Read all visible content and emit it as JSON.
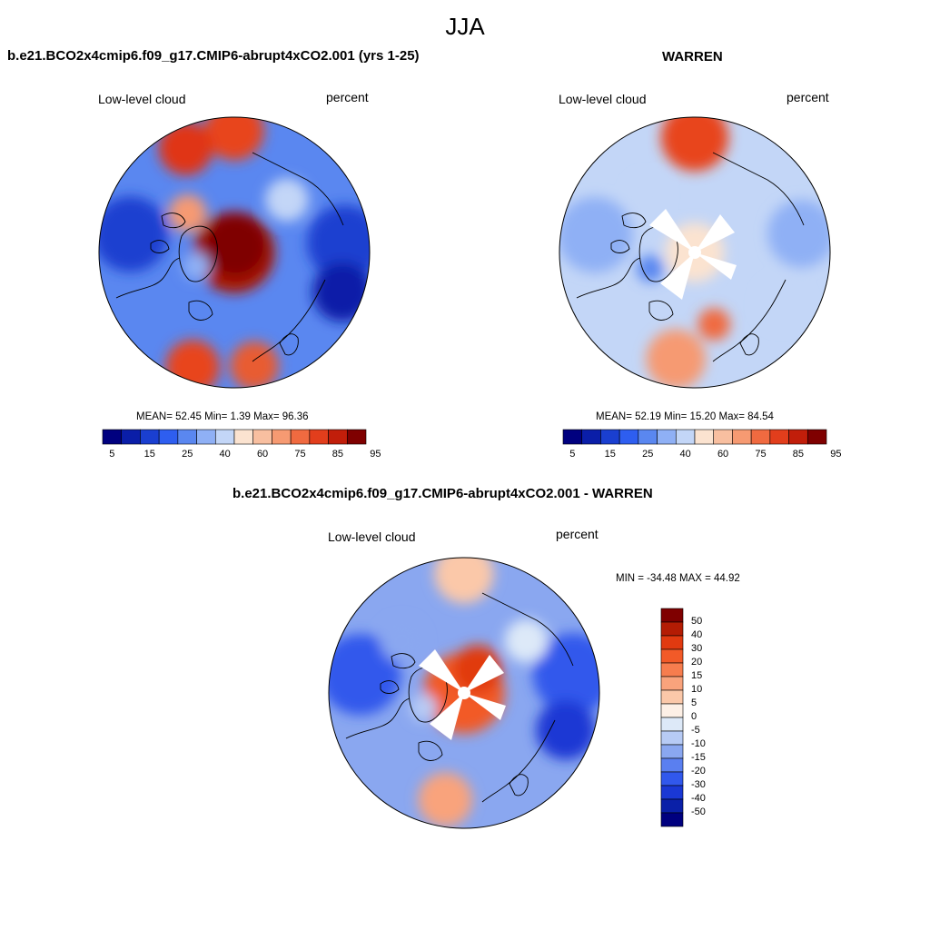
{
  "season_title": "JJA",
  "panels": {
    "model": {
      "title": "b.e21.BCO2x4cmip6.f09_g17.CMIP6-abrupt4xCO2.001 (yrs 1-25)",
      "left_label": "Low-level cloud",
      "right_label": "percent",
      "stats": "MEAN=  52.45  Min=   1.39  Max=  96.36"
    },
    "obs": {
      "title": "WARREN",
      "left_label": "Low-level cloud",
      "right_label": "percent",
      "stats": "MEAN=  52.19  Min=  15.20  Max=  84.54"
    },
    "diff": {
      "title": "b.e21.BCO2x4cmip6.f09_g17.CMIP6-abrupt4xCO2.001 - WARREN",
      "left_label": "Low-level cloud",
      "right_label": "percent",
      "stats": "MIN = -34.48 MAX =  44.92"
    }
  },
  "colorbars": {
    "abs": {
      "colors": [
        "#00007f",
        "#0a1ea8",
        "#1a3fd0",
        "#2e5ef0",
        "#5a87f0",
        "#8fb0f5",
        "#c3d6f7",
        "#fbe3d0",
        "#f8bfa0",
        "#f69a72",
        "#f06a40",
        "#e23e1c",
        "#c11e0a",
        "#7f0000"
      ],
      "tick_labels": [
        "5",
        "15",
        "25",
        "40",
        "60",
        "75",
        "85",
        "95"
      ]
    },
    "diff": {
      "colors_top_to_bottom": [
        "#7f0000",
        "#b41c04",
        "#e13a10",
        "#f25a28",
        "#f77d4e",
        "#f9a37c",
        "#fbc8a9",
        "#fdf0e6",
        "#dde9f8",
        "#b7cbf5",
        "#8aa7f0",
        "#5a7ff0",
        "#3158ec",
        "#1a38d4",
        "#0a20a8",
        "#00007f"
      ],
      "tick_labels": [
        "50",
        "40",
        "30",
        "20",
        "15",
        "10",
        "5",
        "0",
        "-5",
        "-10",
        "-15",
        "-20",
        "-30",
        "-40",
        "-50"
      ]
    }
  },
  "map_fields": {
    "model": [
      {
        "angle": 0,
        "dist": 0.0,
        "r": 0.3,
        "color": "#a81204"
      },
      {
        "angle": 80,
        "dist": 0.05,
        "r": 0.23,
        "color": "#7f0000"
      },
      {
        "angle": 90,
        "dist": 0.9,
        "r": 0.22,
        "color": "#e8441e"
      },
      {
        "angle": 115,
        "dist": 0.85,
        "r": 0.2,
        "color": "#e03614"
      },
      {
        "angle": 250,
        "dist": 0.9,
        "r": 0.2,
        "color": "#e8441e"
      },
      {
        "angle": 280,
        "dist": 0.85,
        "r": 0.18,
        "color": "#e85c30"
      },
      {
        "angle": 170,
        "dist": 0.78,
        "r": 0.28,
        "color": "#1a3fd0"
      },
      {
        "angle": 5,
        "dist": 0.82,
        "r": 0.28,
        "color": "#1a3fd0"
      },
      {
        "angle": 340,
        "dist": 0.85,
        "r": 0.22,
        "color": "#0a1ea8"
      },
      {
        "angle": 200,
        "dist": 0.3,
        "r": 0.1,
        "color": "#8fb0f5"
      },
      {
        "angle": 140,
        "dist": 0.45,
        "r": 0.14,
        "color": "#f69a72"
      },
      {
        "angle": 45,
        "dist": 0.55,
        "r": 0.16,
        "color": "#c3d6f7"
      }
    ],
    "obs": [
      {
        "angle": 0,
        "dist": 0.0,
        "r": 0.22,
        "color": "#fbe3d0"
      },
      {
        "angle": 90,
        "dist": 0.85,
        "r": 0.25,
        "color": "#e8441e"
      },
      {
        "angle": 260,
        "dist": 0.8,
        "r": 0.22,
        "color": "#f69a72"
      },
      {
        "angle": 285,
        "dist": 0.55,
        "r": 0.12,
        "color": "#f06a40"
      },
      {
        "angle": 170,
        "dist": 0.75,
        "r": 0.28,
        "color": "#8fb0f5"
      },
      {
        "angle": 10,
        "dist": 0.8,
        "r": 0.25,
        "color": "#8fb0f5"
      },
      {
        "angle": 200,
        "dist": 0.35,
        "r": 0.1,
        "color": "#5a87f0"
      },
      {
        "angle": 330,
        "dist": 0.75,
        "r": 0.18,
        "color": "#c3d6f7"
      },
      {
        "angle": 130,
        "dist": 0.55,
        "r": 0.14,
        "color": "#c3d6f7"
      }
    ],
    "diff": [
      {
        "angle": 0,
        "dist": 0.0,
        "r": 0.3,
        "color": "#f25a28"
      },
      {
        "angle": 60,
        "dist": 0.2,
        "r": 0.18,
        "color": "#e13a10"
      },
      {
        "angle": 170,
        "dist": 0.78,
        "r": 0.3,
        "color": "#3158ec"
      },
      {
        "angle": 10,
        "dist": 0.82,
        "r": 0.3,
        "color": "#3158ec"
      },
      {
        "angle": 340,
        "dist": 0.8,
        "r": 0.22,
        "color": "#1a38d4"
      },
      {
        "angle": 90,
        "dist": 0.88,
        "r": 0.22,
        "color": "#fbc8a9"
      },
      {
        "angle": 260,
        "dist": 0.8,
        "r": 0.2,
        "color": "#f9a37c"
      },
      {
        "angle": 200,
        "dist": 0.32,
        "r": 0.1,
        "color": "#b7cbf5"
      },
      {
        "angle": 140,
        "dist": 0.6,
        "r": 0.16,
        "color": "#8aa7f0"
      },
      {
        "angle": 40,
        "dist": 0.6,
        "r": 0.16,
        "color": "#dde9f8"
      }
    ]
  }
}
